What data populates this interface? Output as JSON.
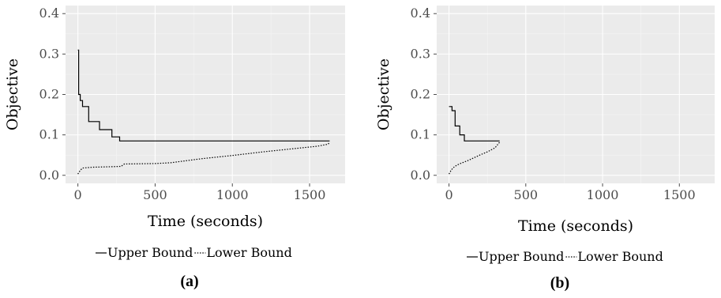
{
  "chart_data": [
    {
      "type": "line",
      "xlabel": "Time (seconds)",
      "ylabel": "Objective",
      "xlim": [
        -80,
        1730
      ],
      "ylim": [
        -0.02,
        0.42
      ],
      "xticks": [
        0,
        500,
        1000,
        1500
      ],
      "yticks": [
        0.0,
        0.1,
        0.2,
        0.3,
        0.4
      ],
      "xtick_labels": [
        "0",
        "500",
        "1000",
        "1500"
      ],
      "ytick_labels": [
        "0.0",
        "0.1",
        "0.2",
        "0.3",
        "0.4"
      ],
      "grid": true,
      "legend_position": "bottom",
      "caption": "(a)",
      "series": [
        {
          "name": "Upper Bound",
          "style": "solid",
          "x": [
            0,
            5,
            5,
            15,
            15,
            30,
            30,
            70,
            70,
            140,
            140,
            220,
            220,
            270,
            270,
            1630
          ],
          "y": [
            0.31,
            0.31,
            0.2,
            0.2,
            0.185,
            0.185,
            0.17,
            0.17,
            0.133,
            0.133,
            0.113,
            0.113,
            0.095,
            0.095,
            0.085,
            0.085
          ]
        },
        {
          "name": "Lower Bound",
          "style": "dotted",
          "x": [
            0,
            8,
            15,
            25,
            30,
            60,
            100,
            200,
            280,
            300,
            500,
            600,
            800,
            1000,
            1200,
            1400,
            1550,
            1620,
            1630
          ],
          "y": [
            0.003,
            0.008,
            0.012,
            0.016,
            0.018,
            0.019,
            0.02,
            0.021,
            0.022,
            0.028,
            0.029,
            0.031,
            0.041,
            0.049,
            0.058,
            0.066,
            0.072,
            0.077,
            0.082
          ]
        }
      ]
    },
    {
      "type": "line",
      "xlabel": "Time (seconds)",
      "ylabel": "Objective",
      "xlim": [
        -80,
        1730
      ],
      "ylim": [
        -0.02,
        0.42
      ],
      "xticks": [
        0,
        500,
        1000,
        1500
      ],
      "yticks": [
        0.0,
        0.1,
        0.2,
        0.3,
        0.4
      ],
      "xtick_labels": [
        "0",
        "500",
        "1000",
        "1500"
      ],
      "ytick_labels": [
        "0.0",
        "0.1",
        "0.2",
        "0.3",
        "0.4"
      ],
      "grid": true,
      "legend_position": "bottom",
      "caption": "(b)",
      "series": [
        {
          "name": "Upper Bound",
          "style": "solid",
          "x": [
            0,
            20,
            20,
            40,
            40,
            70,
            70,
            100,
            100,
            330
          ],
          "y": [
            0.17,
            0.17,
            0.16,
            0.16,
            0.122,
            0.122,
            0.1,
            0.1,
            0.085,
            0.085
          ]
        },
        {
          "name": "Lower Bound",
          "style": "dotted",
          "x": [
            0,
            10,
            25,
            50,
            80,
            120,
            160,
            200,
            250,
            300,
            330
          ],
          "y": [
            0.003,
            0.01,
            0.018,
            0.025,
            0.03,
            0.036,
            0.043,
            0.05,
            0.058,
            0.068,
            0.082
          ]
        }
      ]
    }
  ]
}
